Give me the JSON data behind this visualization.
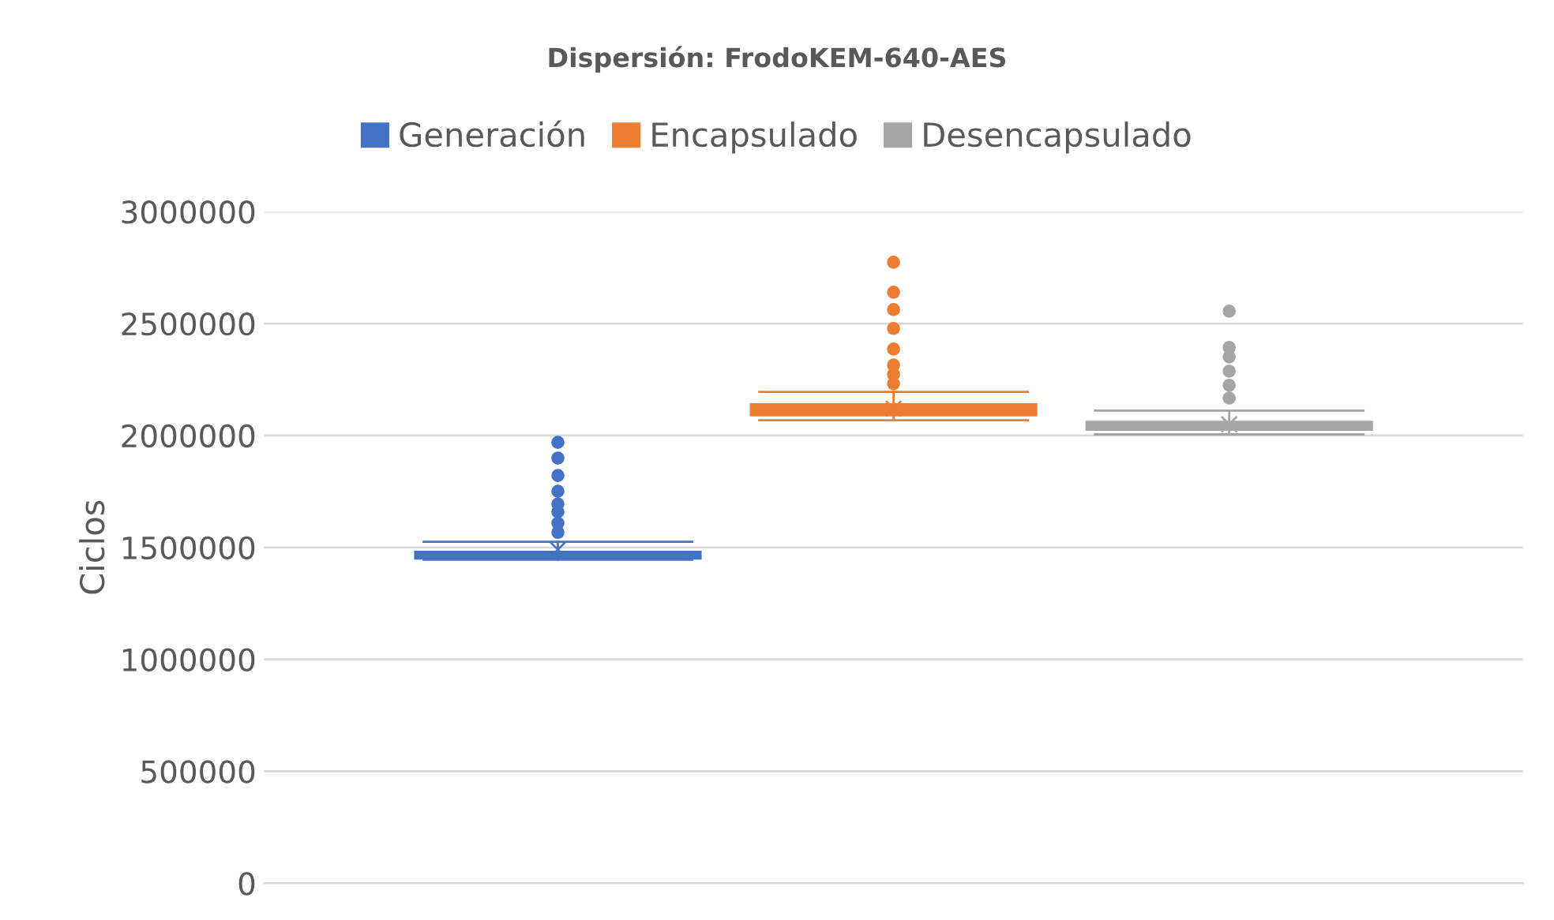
{
  "chart_data": {
    "type": "box",
    "title": "Dispersión: FrodoKEM-640-AES",
    "ylabel": "Ciclos",
    "categories": [
      null
    ],
    "series": [
      {
        "name": "Generación",
        "color": "#4472c4",
        "boxes": [
          {
            "low": 1445000,
            "q1": 1450000,
            "median": 1460000,
            "q3": 1480000,
            "high": 1525000,
            "mean": 1490000,
            "outliers": [
              1969000,
              1899000,
              1821000,
              1751000,
              1694000,
              1659000,
              1609000,
              1567000
            ]
          }
        ]
      },
      {
        "name": "Encapsulado",
        "color": "#ed7d31",
        "boxes": [
          {
            "low": 2068000,
            "q1": 2090000,
            "median": 2110000,
            "q3": 2139000,
            "high": 2195000,
            "mean": 2120000,
            "outliers": [
              2774000,
              2640000,
              2562000,
              2478000,
              2386000,
              2315000,
              2273000,
              2231000
            ]
          }
        ]
      },
      {
        "name": "Desencapsulado",
        "color": "#a5a5a5",
        "boxes": [
          {
            "low": 2005000,
            "q1": 2026000,
            "median": 2040000,
            "q3": 2061000,
            "high": 2111000,
            "mean": 2050000,
            "outliers": [
              2555000,
              2393000,
              2351000,
              2287000,
              2224000,
              2167000
            ]
          }
        ]
      }
    ],
    "ylim": [
      0,
      3000000
    ],
    "yticks": [
      0,
      500000,
      1000000,
      1500000,
      2000000,
      2500000,
      3000000
    ],
    "grid": "y",
    "legend": "top"
  }
}
